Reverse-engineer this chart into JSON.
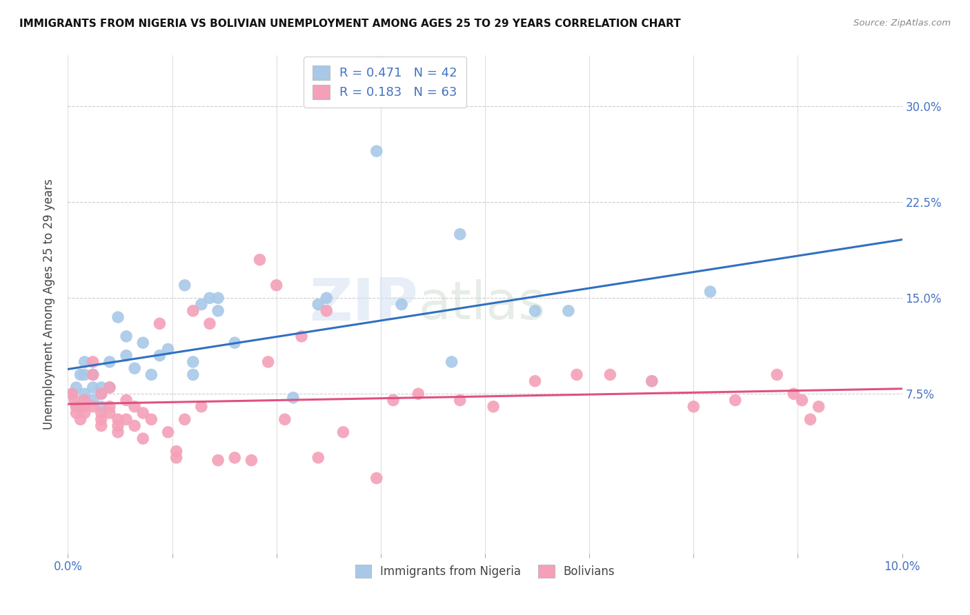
{
  "title": "IMMIGRANTS FROM NIGERIA VS BOLIVIAN UNEMPLOYMENT AMONG AGES 25 TO 29 YEARS CORRELATION CHART",
  "source": "Source: ZipAtlas.com",
  "ylabel": "Unemployment Among Ages 25 to 29 years",
  "ylabel_ticks": [
    "7.5%",
    "15.0%",
    "22.5%",
    "30.0%"
  ],
  "ylabel_vals": [
    0.075,
    0.15,
    0.225,
    0.3
  ],
  "xlim": [
    0.0,
    0.1
  ],
  "ylim": [
    -0.05,
    0.34
  ],
  "legend_label1": "Immigrants from Nigeria",
  "legend_label2": "Bolivians",
  "color_blue": "#a8c8e8",
  "color_pink": "#f4a0b8",
  "trendline_blue": "#3070c0",
  "trendline_pink": "#e05080",
  "watermark": "ZIPatlas",
  "blue_x": [
    0.0005,
    0.001,
    0.001,
    0.0015,
    0.002,
    0.002,
    0.002,
    0.003,
    0.003,
    0.003,
    0.004,
    0.004,
    0.004,
    0.005,
    0.005,
    0.006,
    0.007,
    0.007,
    0.008,
    0.009,
    0.01,
    0.011,
    0.012,
    0.014,
    0.015,
    0.015,
    0.016,
    0.017,
    0.018,
    0.018,
    0.02,
    0.027,
    0.03,
    0.031,
    0.037,
    0.04,
    0.046,
    0.047,
    0.056,
    0.06,
    0.07,
    0.077
  ],
  "blue_y": [
    0.075,
    0.08,
    0.065,
    0.09,
    0.075,
    0.1,
    0.09,
    0.07,
    0.08,
    0.09,
    0.075,
    0.08,
    0.065,
    0.1,
    0.08,
    0.135,
    0.105,
    0.12,
    0.095,
    0.115,
    0.09,
    0.105,
    0.11,
    0.16,
    0.09,
    0.1,
    0.145,
    0.15,
    0.15,
    0.14,
    0.115,
    0.072,
    0.145,
    0.15,
    0.265,
    0.145,
    0.1,
    0.2,
    0.14,
    0.14,
    0.085,
    0.155
  ],
  "pink_x": [
    0.0005,
    0.0008,
    0.001,
    0.001,
    0.0015,
    0.002,
    0.002,
    0.002,
    0.003,
    0.003,
    0.003,
    0.004,
    0.004,
    0.004,
    0.004,
    0.005,
    0.005,
    0.005,
    0.006,
    0.006,
    0.006,
    0.007,
    0.007,
    0.008,
    0.008,
    0.009,
    0.009,
    0.01,
    0.011,
    0.012,
    0.013,
    0.013,
    0.014,
    0.015,
    0.016,
    0.017,
    0.018,
    0.02,
    0.022,
    0.023,
    0.024,
    0.025,
    0.026,
    0.028,
    0.03,
    0.031,
    0.033,
    0.037,
    0.039,
    0.042,
    0.047,
    0.051,
    0.056,
    0.061,
    0.065,
    0.07,
    0.075,
    0.08,
    0.085,
    0.087,
    0.088,
    0.089,
    0.09
  ],
  "pink_y": [
    0.075,
    0.07,
    0.065,
    0.06,
    0.055,
    0.07,
    0.065,
    0.06,
    0.1,
    0.09,
    0.065,
    0.05,
    0.06,
    0.055,
    0.075,
    0.08,
    0.065,
    0.06,
    0.055,
    0.05,
    0.045,
    0.07,
    0.055,
    0.05,
    0.065,
    0.06,
    0.04,
    0.055,
    0.13,
    0.045,
    0.03,
    0.025,
    0.055,
    0.14,
    0.065,
    0.13,
    0.023,
    0.025,
    0.023,
    0.18,
    0.1,
    0.16,
    0.055,
    0.12,
    0.025,
    0.14,
    0.045,
    0.009,
    0.07,
    0.075,
    0.07,
    0.065,
    0.085,
    0.09,
    0.09,
    0.085,
    0.065,
    0.07,
    0.09,
    0.075,
    0.07,
    0.055,
    0.065
  ],
  "xtick_positions": [
    0.0,
    0.025,
    0.05,
    0.075,
    0.1
  ],
  "xtick_labels": [
    "0.0%",
    "",
    "",
    "",
    "10.0%"
  ]
}
